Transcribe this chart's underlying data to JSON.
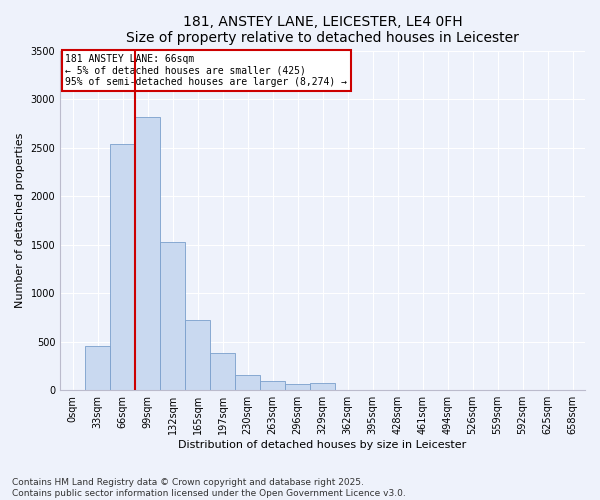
{
  "title": "181, ANSTEY LANE, LEICESTER, LE4 0FH",
  "subtitle": "Size of property relative to detached houses in Leicester",
  "xlabel": "Distribution of detached houses by size in Leicester",
  "ylabel": "Number of detached properties",
  "categories": [
    "0sqm",
    "33sqm",
    "66sqm",
    "99sqm",
    "132sqm",
    "165sqm",
    "197sqm",
    "230sqm",
    "263sqm",
    "296sqm",
    "329sqm",
    "362sqm",
    "395sqm",
    "428sqm",
    "461sqm",
    "494sqm",
    "526sqm",
    "559sqm",
    "592sqm",
    "625sqm",
    "658sqm"
  ],
  "values": [
    5,
    460,
    2540,
    2820,
    1530,
    720,
    385,
    160,
    100,
    60,
    75,
    5,
    3,
    3,
    3,
    0,
    0,
    0,
    0,
    0,
    0
  ],
  "bar_color": "#c9d9f0",
  "bar_edge_color": "#7a9fcc",
  "vline_color": "#cc0000",
  "annotation_text": "181 ANSTEY LANE: 66sqm\n← 5% of detached houses are smaller (425)\n95% of semi-detached houses are larger (8,274) →",
  "annotation_box_facecolor": "white",
  "annotation_box_edgecolor": "#cc0000",
  "ylim": [
    0,
    3500
  ],
  "yticks": [
    0,
    500,
    1000,
    1500,
    2000,
    2500,
    3000,
    3500
  ],
  "bg_color": "#eef2fb",
  "plot_bg_color": "#eef2fb",
  "grid_color": "white",
  "footer": "Contains HM Land Registry data © Crown copyright and database right 2025.\nContains public sector information licensed under the Open Government Licence v3.0.",
  "title_fontsize": 10,
  "xlabel_fontsize": 8,
  "ylabel_fontsize": 8,
  "tick_fontsize": 7,
  "annotation_fontsize": 7,
  "footer_fontsize": 6.5
}
